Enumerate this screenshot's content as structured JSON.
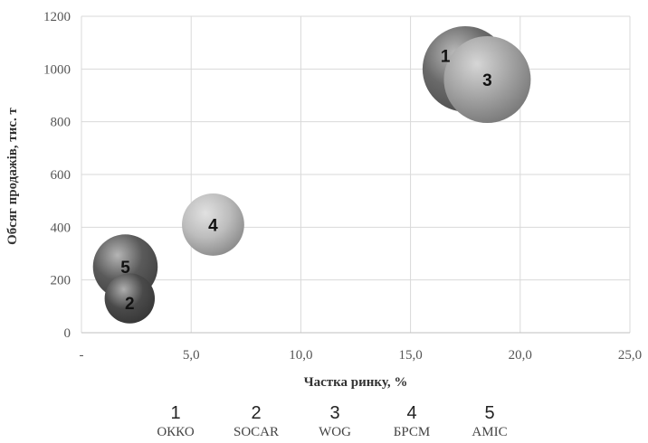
{
  "chart_data": {
    "type": "scatter",
    "subtype": "bubble",
    "xlabel": "Частка ринку, %",
    "ylabel": "Обсяг продажів, тис. т",
    "xlim": [
      0,
      25
    ],
    "ylim": [
      0,
      1200
    ],
    "x_ticks": [
      "-",
      "5,0",
      "10,0",
      "15,0",
      "20,0",
      "25,0"
    ],
    "y_ticks": [
      "0",
      "200",
      "400",
      "600",
      "800",
      "1000",
      "1200"
    ],
    "grid": true,
    "legend_position": "bottom",
    "points": [
      {
        "label": "1",
        "name": "ОККО",
        "x": 17.5,
        "y": 1000,
        "size": 3.5,
        "color": "#6a6a6a"
      },
      {
        "label": "2",
        "name": "SOCAR",
        "x": 2.2,
        "y": 130,
        "size": 1.2,
        "color": "#4a4a4a"
      },
      {
        "label": "3",
        "name": "WOG",
        "x": 18.5,
        "y": 960,
        "size": 3.6,
        "color": "#a4a4a4"
      },
      {
        "label": "4",
        "name": "БРСМ",
        "x": 6.0,
        "y": 410,
        "size": 1.85,
        "color": "#bdbdbd"
      },
      {
        "label": "5",
        "name": "AMIC",
        "x": 2.0,
        "y": 250,
        "size": 2.0,
        "color": "#5a5a5a"
      }
    ]
  }
}
